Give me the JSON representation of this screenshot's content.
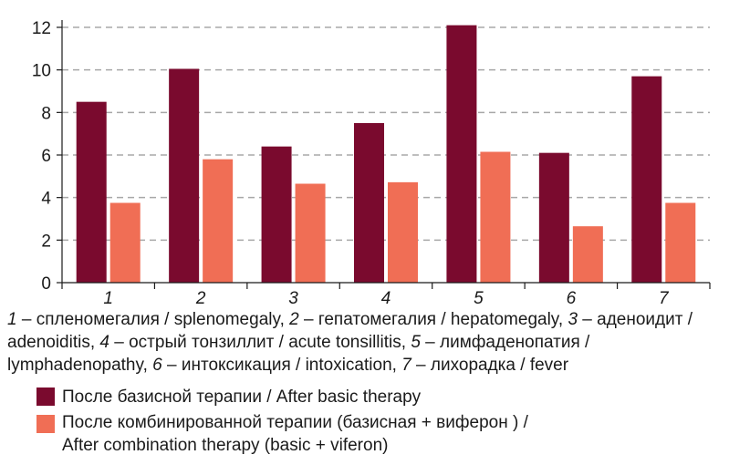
{
  "chart_data": {
    "type": "bar",
    "categories": [
      "1",
      "2",
      "3",
      "4",
      "5",
      "6",
      "7"
    ],
    "series": [
      {
        "name": "После базисной терапии / After basic therapy",
        "color": "#7a0a2e",
        "values": [
          8.5,
          10.05,
          6.4,
          7.5,
          12.1,
          6.1,
          9.7
        ]
      },
      {
        "name": "После комбинированной терапии (базисная + виферон ) / After combination therapy (basic + viferon)",
        "color": "#f06e55",
        "values": [
          3.75,
          5.8,
          4.65,
          4.72,
          6.15,
          2.65,
          3.75
        ]
      }
    ],
    "ylim": [
      0,
      12
    ],
    "yticks": [
      "0",
      "2",
      "4",
      "6",
      "8",
      "10",
      "12"
    ],
    "grid": true,
    "xlabel": "",
    "ylabel": ""
  },
  "caption": [
    {
      "num": "1",
      "text": " – спленомегалия / splenomegaly, "
    },
    {
      "num": "2",
      "text": " – гепатомегалия / hepatomegaly, "
    },
    {
      "num": "3",
      "text": " – аденоидит / adenoiditis, "
    },
    {
      "num": "4",
      "text": " – острый тонзиллит / acute tonsillitis, "
    },
    {
      "num": "5",
      "text": " – лимфаденопатия / lymphadenopathy, "
    },
    {
      "num": "6",
      "text": " – интоксикация / intoxication, "
    },
    {
      "num": "7",
      "text": " – лихорадка / fever"
    }
  ],
  "legend": [
    {
      "line1": "После базисной терапии / After basic therapy",
      "line2": ""
    },
    {
      "line1": "После комбинированной терапии (базисная + виферон ) /",
      "line2": "After combination therapy (basic + viferon)"
    }
  ]
}
